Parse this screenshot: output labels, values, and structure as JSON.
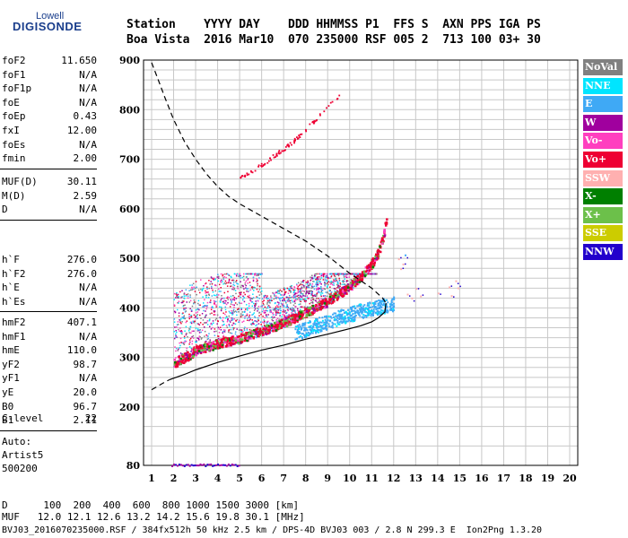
{
  "logo": {
    "line1": "Lowell",
    "line2": "DIGISONDE"
  },
  "header": {
    "row1": "Station    YYYY DAY    DDD HHMMSS P1  FFS S  AXN PPS IGA PS",
    "row2": "Boa Vista  2016 Mar10  070 235000 RSF 005 2  713 100 03+ 30"
  },
  "params_group1": [
    {
      "name": "foF2",
      "value": "11.650"
    },
    {
      "name": "foF1",
      "value": "N/A"
    },
    {
      "name": "foF1p",
      "value": "N/A"
    },
    {
      "name": "foE",
      "value": "N/A"
    },
    {
      "name": "foEp",
      "value": "0.43"
    },
    {
      "name": "fxI",
      "value": "12.00"
    },
    {
      "name": "foEs",
      "value": "N/A"
    },
    {
      "name": "fmin",
      "value": "2.00"
    }
  ],
  "params_group2": [
    {
      "name": "MUF(D)",
      "value": "30.11"
    },
    {
      "name": "M(D)",
      "value": "2.59"
    },
    {
      "name": "D",
      "value": "N/A"
    }
  ],
  "params_group3": [
    {
      "name": "h`F",
      "value": "276.0"
    },
    {
      "name": "h`F2",
      "value": "276.0"
    },
    {
      "name": "h`E",
      "value": "N/A"
    },
    {
      "name": "h`Es",
      "value": "N/A"
    }
  ],
  "params_group4": [
    {
      "name": "hmF2",
      "value": "407.1"
    },
    {
      "name": "hmF1",
      "value": "N/A"
    },
    {
      "name": "hmE",
      "value": "110.0"
    },
    {
      "name": "yF2",
      "value": "98.7"
    },
    {
      "name": "yF1",
      "value": "N/A"
    },
    {
      "name": "yE",
      "value": "20.0"
    },
    {
      "name": "B0",
      "value": "96.7"
    },
    {
      "name": "B1",
      "value": "2.11"
    }
  ],
  "params_group5": [
    {
      "name": "C-level",
      "value": "22"
    }
  ],
  "autoscale": {
    "line1": "Auto:",
    "line2": "Artist5",
    "line3": "500200"
  },
  "legend": [
    {
      "label": "NoVal",
      "color": "#808080"
    },
    {
      "label": "NNE",
      "color": "#00e5ff"
    },
    {
      "label": "E",
      "color": "#3fa9f5"
    },
    {
      "label": "W",
      "color": "#a0009e"
    },
    {
      "label": "Vo-",
      "color": "#ff3fbf"
    },
    {
      "label": "Vo+",
      "color": "#ee0033"
    },
    {
      "label": "SSW",
      "color": "#ffb0b0"
    },
    {
      "label": "X-",
      "color": "#007f00"
    },
    {
      "label": "X+",
      "color": "#6cc04a"
    },
    {
      "label": "SSE",
      "color": "#cccc00"
    },
    {
      "label": "NNW",
      "color": "#2200cc"
    }
  ],
  "footer": {
    "line1": "D      100  200  400  600  800 1000 1500 3000 [km]",
    "line2": "MUF   12.0 12.1 12.6 13.2 14.2 15.6 19.8 30.1 [MHz]",
    "line3": "BVJ03_2016070235000.RSF / 384fx512h 50 kHz 2.5 km / DPS-4D BVJ03 003 / 2.8 N 299.3 E  Ion2Png 1.3.20"
  },
  "chart_data": {
    "type": "scatter",
    "x_ticks": [
      "1",
      "2",
      "3",
      "4",
      "5",
      "6",
      "7",
      "8",
      "9",
      "10",
      "11",
      "12",
      "13",
      "14",
      "15",
      "16",
      "17",
      "18",
      "19",
      "20"
    ],
    "y_ticks": [
      "80",
      "200",
      "300",
      "400",
      "500",
      "600",
      "700",
      "800",
      "900"
    ],
    "xlim": [
      1,
      20
    ],
    "ylim": [
      80,
      900
    ],
    "grid": true,
    "y_scale": "piecewise (80-200 compressed)",
    "traces": [
      {
        "name": "O-trace",
        "color": "#ee0033",
        "x": [
          2.0,
          2.5,
          3.0,
          4.0,
          5.0,
          6.0,
          7.0,
          8.0,
          9.0,
          10.0,
          10.5,
          11.0,
          11.3,
          11.5,
          11.65
        ],
        "y": [
          290,
          302,
          315,
          330,
          340,
          355,
          372,
          392,
          415,
          445,
          465,
          492,
          515,
          545,
          580
        ]
      },
      {
        "name": "X-trace",
        "color": "#3fa9f5",
        "x": [
          7.5,
          8.0,
          8.5,
          9.0,
          9.5,
          10.0,
          10.5,
          11.0,
          11.5,
          12.0
        ],
        "y": [
          350,
          358,
          366,
          374,
          382,
          388,
          395,
          400,
          405,
          410
        ]
      },
      {
        "name": "multi-hop",
        "color": "#ee0033",
        "x": [
          5.0,
          5.5,
          6.0,
          6.5,
          7.0,
          7.5,
          8.0,
          8.5,
          9.0,
          9.5
        ],
        "y": [
          665,
          676,
          690,
          707,
          722,
          740,
          762,
          785,
          808,
          830
        ]
      },
      {
        "name": "model-profile",
        "style": "solid",
        "x": [
          1.8,
          2.5,
          3.0,
          4.0,
          5.0,
          6.0,
          7.0,
          8.0,
          9.0,
          10.0,
          10.5,
          11.0,
          11.3,
          11.6,
          11.65
        ],
        "y": [
          255,
          266,
          275,
          290,
          303,
          315,
          325,
          337,
          347,
          358,
          364,
          372,
          380,
          392,
          410
        ]
      },
      {
        "name": "dashed-profile",
        "style": "dashed",
        "x": [
          1.0,
          1.3,
          1.6,
          2.0,
          2.5,
          3.0,
          3.5,
          4.0,
          4.5,
          5.0,
          6.0,
          7.0,
          8.0,
          9.0,
          10.0,
          10.5,
          11.0,
          11.5,
          11.65
        ],
        "y": [
          895,
          860,
          825,
          780,
          735,
          700,
          670,
          645,
          625,
          610,
          585,
          560,
          535,
          505,
          470,
          455,
          440,
          420,
          410
        ]
      },
      {
        "name": "dashed-lower",
        "style": "dashed",
        "x": [
          1.0,
          1.2,
          1.5,
          1.8
        ],
        "y": [
          235,
          240,
          248,
          255
        ]
      }
    ]
  }
}
